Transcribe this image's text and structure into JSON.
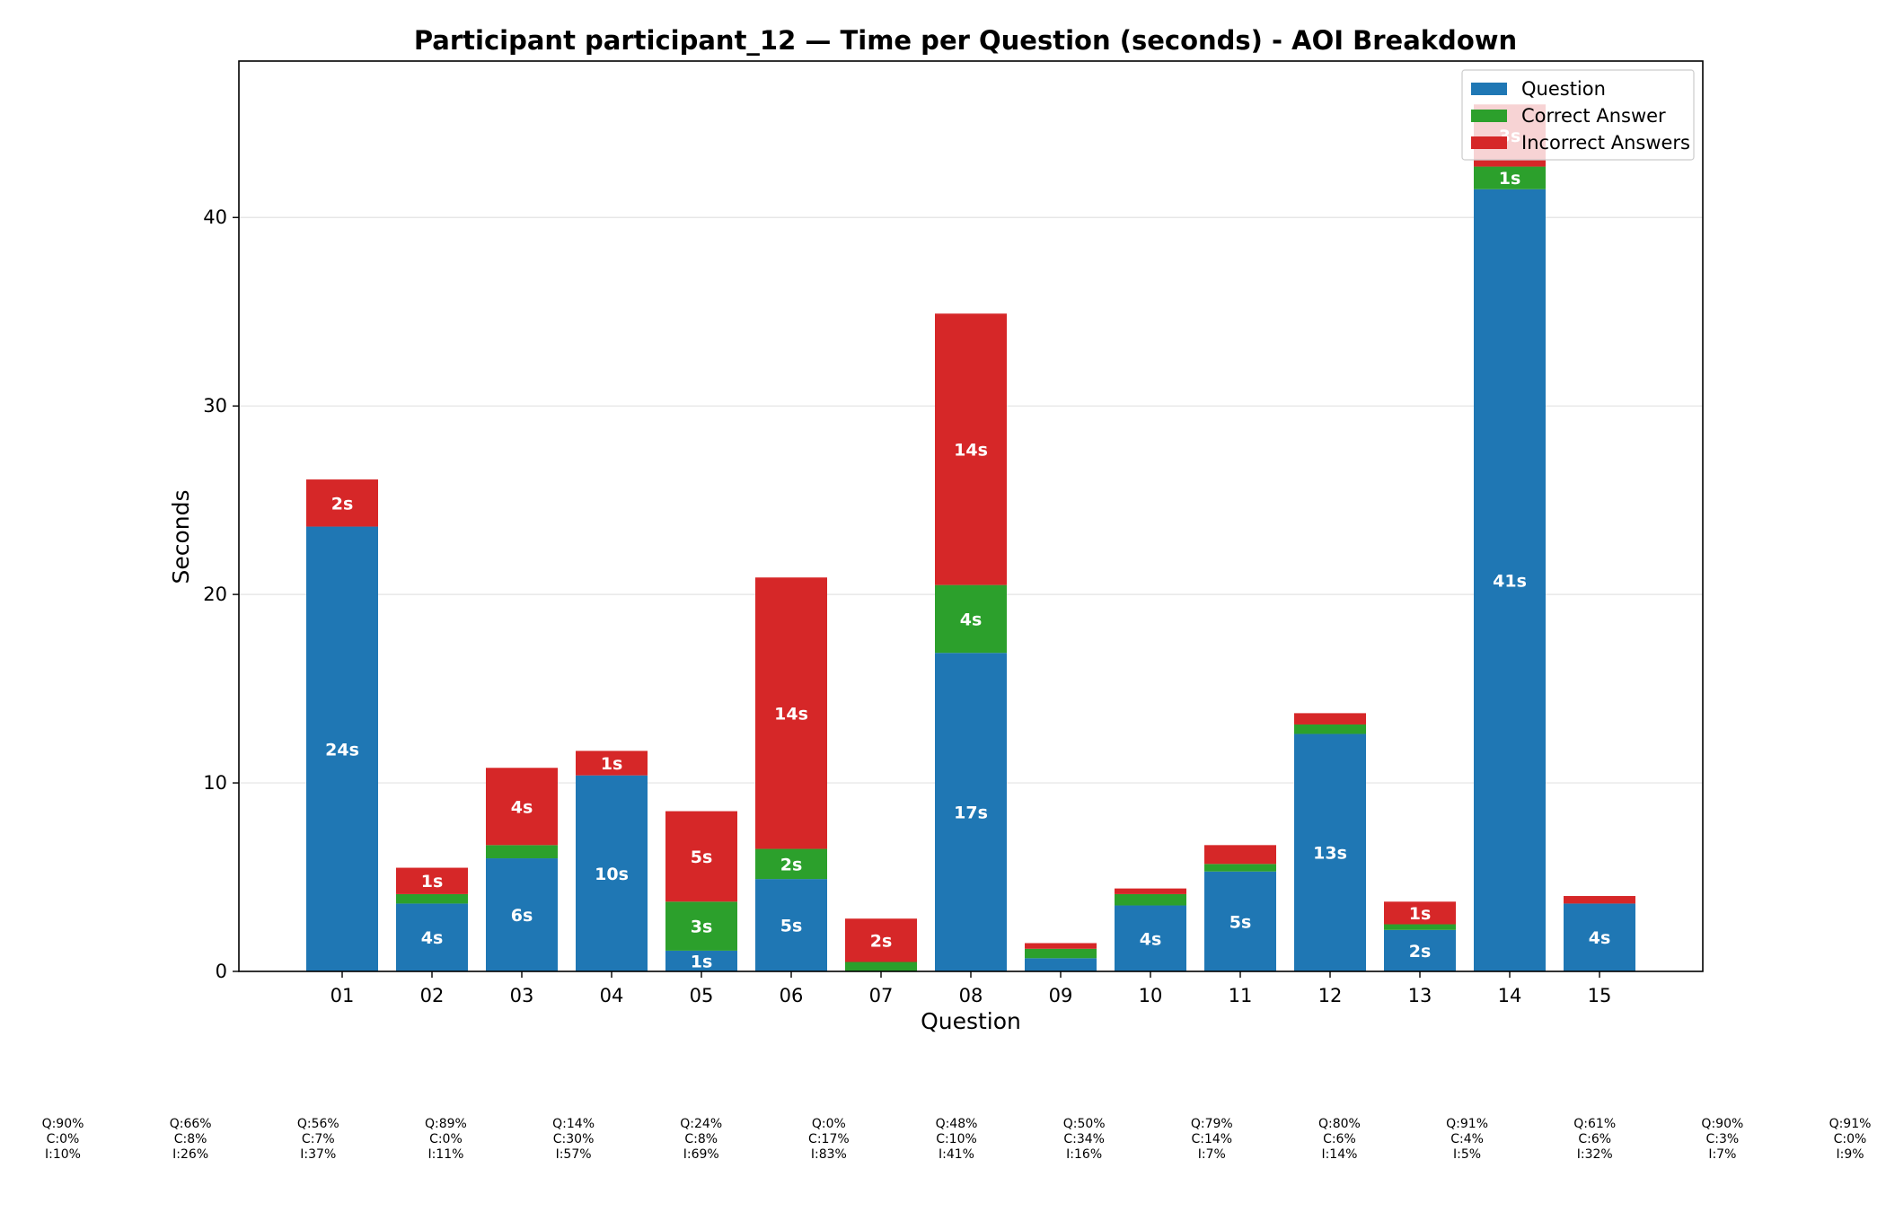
{
  "chart_data": {
    "type": "bar",
    "stacked": true,
    "title": "Participant participant_12 — Time per Question (seconds) - AOI Breakdown",
    "xlabel": "Question",
    "ylabel": "Seconds",
    "ylim": [
      0,
      48.3
    ],
    "yticks": [
      0,
      10,
      20,
      30,
      40
    ],
    "grid": "horizontal",
    "legend_position": "top-right",
    "categories": [
      "01",
      "02",
      "03",
      "04",
      "05",
      "06",
      "07",
      "08",
      "09",
      "10",
      "11",
      "12",
      "13",
      "14",
      "15"
    ],
    "series": [
      {
        "name": "Question",
        "color": "#1f77b4",
        "values": [
          23.6,
          3.6,
          6.0,
          10.4,
          1.1,
          4.9,
          0.0,
          16.9,
          0.7,
          3.5,
          5.3,
          12.6,
          2.2,
          41.5,
          3.6
        ],
        "labels": [
          "24s",
          "4s",
          "6s",
          "10s",
          "1s",
          "5s",
          "",
          "17s",
          "",
          "4s",
          "5s",
          "13s",
          "2s",
          "41s",
          "4s"
        ]
      },
      {
        "name": "Correct Answer",
        "color": "#2ca02c",
        "values": [
          0.0,
          0.5,
          0.7,
          0.0,
          2.6,
          1.6,
          0.5,
          3.6,
          0.5,
          0.6,
          0.4,
          0.5,
          0.3,
          1.2,
          0.0
        ],
        "labels": [
          "",
          "",
          "",
          "",
          "3s",
          "2s",
          "",
          "4s",
          "",
          "",
          "",
          "",
          "",
          "1s",
          ""
        ]
      },
      {
        "name": "Incorrect Answers",
        "color": "#d62728",
        "values": [
          2.5,
          1.4,
          4.1,
          1.3,
          4.8,
          14.4,
          2.3,
          14.4,
          0.3,
          0.3,
          1.0,
          0.6,
          1.2,
          3.3,
          0.4
        ],
        "labels": [
          "2s",
          "1s",
          "4s",
          "1s",
          "5s",
          "14s",
          "2s",
          "14s",
          "",
          "",
          "",
          "",
          "1s",
          "3s",
          ""
        ]
      }
    ],
    "aoi_shares": [
      [
        "Q:90%",
        "C:0%",
        "I:10%"
      ],
      [
        "Q:66%",
        "C:8%",
        "I:26%"
      ],
      [
        "Q:56%",
        "C:7%",
        "I:37%"
      ],
      [
        "Q:89%",
        "C:0%",
        "I:11%"
      ],
      [
        "Q:14%",
        "C:30%",
        "I:57%"
      ],
      [
        "Q:24%",
        "C:8%",
        "I:69%"
      ],
      [
        "Q:0%",
        "C:17%",
        "I:83%"
      ],
      [
        "Q:48%",
        "C:10%",
        "I:41%"
      ],
      [
        "Q:50%",
        "C:34%",
        "I:16%"
      ],
      [
        "Q:79%",
        "C:14%",
        "I:7%"
      ],
      [
        "Q:80%",
        "C:6%",
        "I:14%"
      ],
      [
        "Q:91%",
        "C:4%",
        "I:5%"
      ],
      [
        "Q:61%",
        "C:6%",
        "I:32%"
      ],
      [
        "Q:90%",
        "C:3%",
        "I:7%"
      ],
      [
        "Q:91%",
        "C:0%",
        "I:9%"
      ]
    ]
  }
}
